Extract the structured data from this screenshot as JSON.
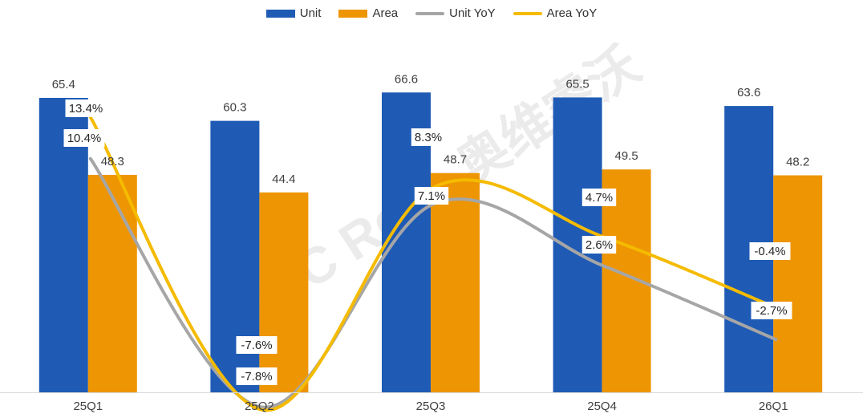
{
  "chart_data": {
    "type": "bar",
    "categories": [
      "25Q1",
      "25Q2",
      "25Q3",
      "25Q4",
      "26Q1"
    ],
    "series": [
      {
        "name": "Unit",
        "kind": "bar",
        "color": "#1f5bb5",
        "values": [
          65.4,
          60.3,
          66.6,
          65.5,
          63.6
        ],
        "labels": [
          "65.4",
          "60.3",
          "66.6",
          "65.5",
          "63.6"
        ]
      },
      {
        "name": "Area",
        "kind": "bar",
        "color": "#ee9503",
        "values": [
          48.3,
          44.4,
          48.7,
          49.5,
          48.2
        ],
        "labels": [
          "48.3",
          "44.4",
          "48.7",
          "49.5",
          "48.2"
        ]
      },
      {
        "name": "Unit YoY",
        "kind": "line",
        "color": "#a6a6a6",
        "values": [
          10.4,
          -7.6,
          7.1,
          2.6,
          -2.7
        ],
        "labels": [
          "10.4%",
          "-7.6%",
          "7.1%",
          "2.6%",
          "-2.7%"
        ]
      },
      {
        "name": "Area YoY",
        "kind": "line",
        "color": "#f5bb00",
        "values": [
          13.4,
          -7.8,
          8.3,
          4.7,
          -0.4
        ],
        "labels": [
          "13.4%",
          "-7.8%",
          "8.3%",
          "4.7%",
          "-0.4%"
        ]
      }
    ],
    "bar_ylim": [
      0,
      70
    ],
    "line_ylim": [
      -10,
      20
    ],
    "title": "",
    "xlabel": "",
    "ylabel": "",
    "legend_position": "top-center",
    "grid": false
  },
  "watermark": {
    "text": "AVC Revo 奥维睿沃"
  }
}
